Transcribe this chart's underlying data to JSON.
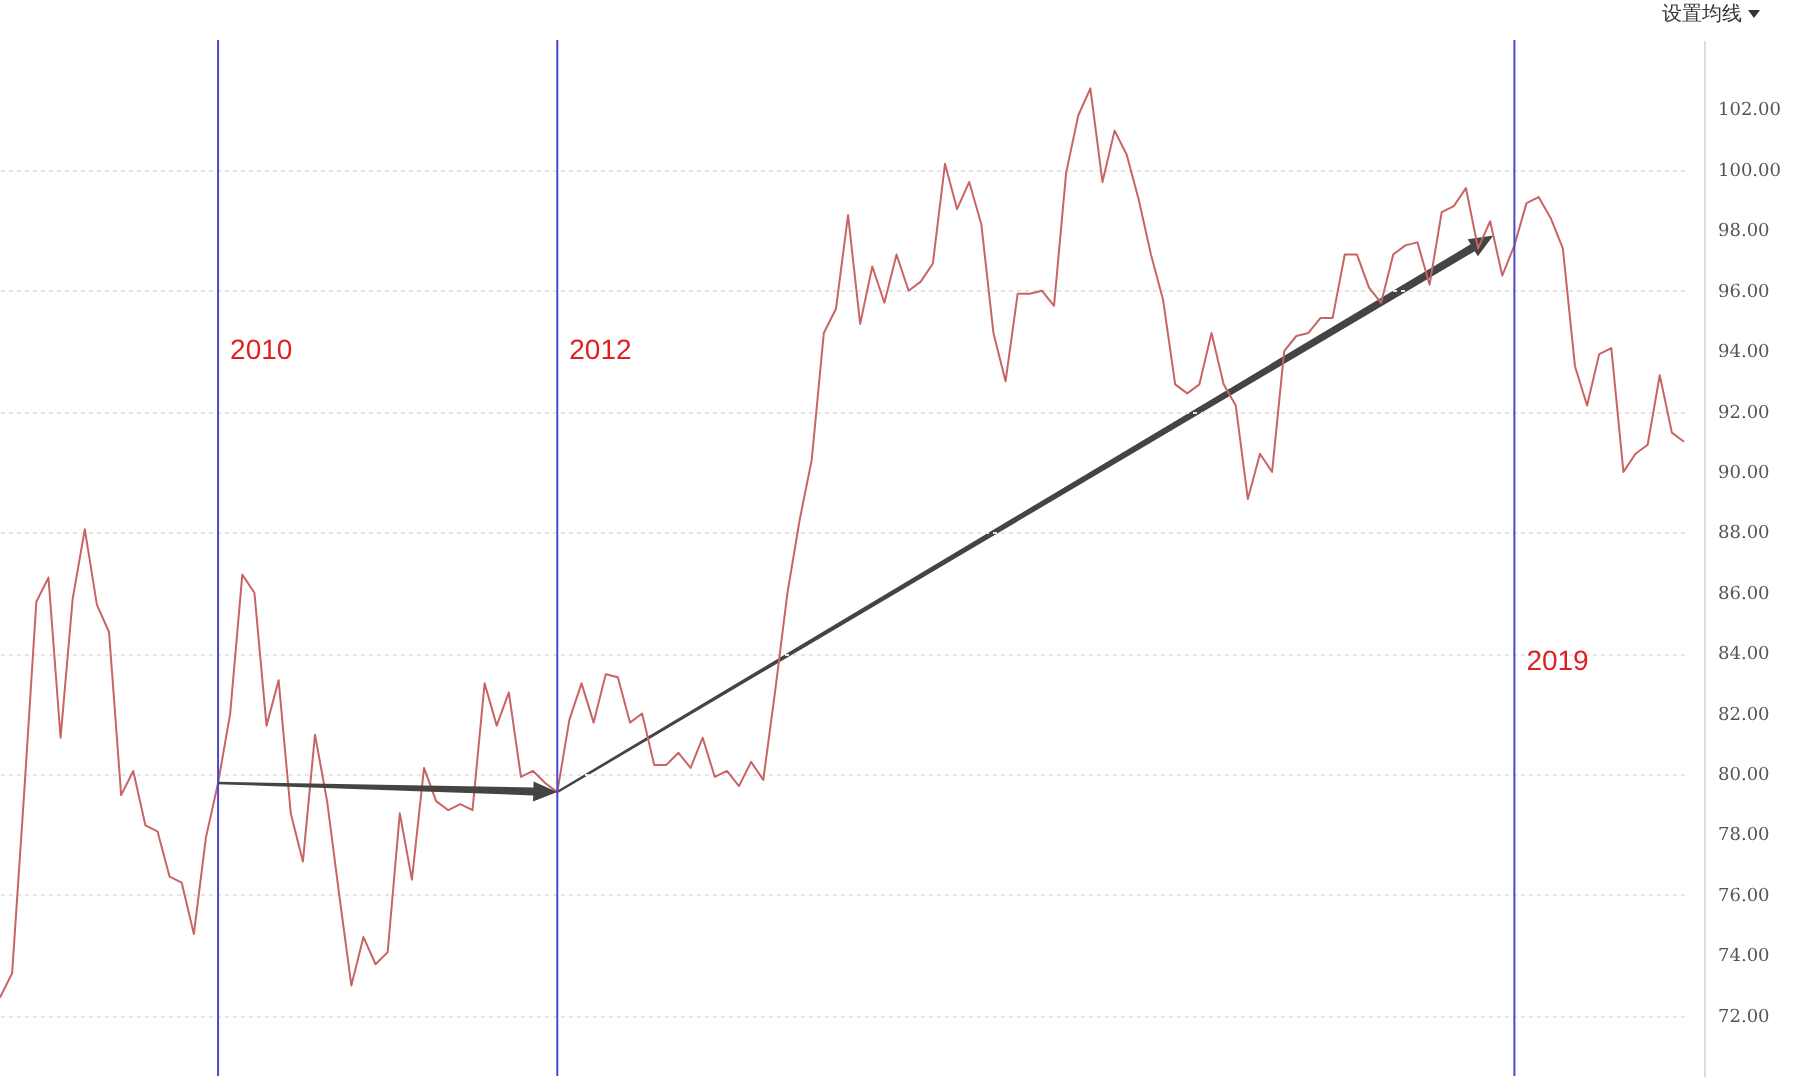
{
  "chart_data": {
    "type": "line",
    "categories": [
      null,
      null,
      null,
      null,
      null,
      null,
      null,
      null,
      null,
      null,
      null,
      null,
      null,
      null,
      null,
      null,
      null,
      null,
      null,
      null,
      null,
      null,
      null,
      null,
      null,
      null,
      null,
      null,
      null,
      null,
      null,
      null,
      null,
      null,
      null,
      null,
      null,
      null,
      null,
      null,
      null,
      null,
      null,
      null,
      null,
      null,
      null,
      null,
      null,
      null,
      null,
      null,
      null,
      null,
      null,
      null,
      null,
      null,
      null,
      null,
      null,
      null,
      null,
      null,
      null,
      null,
      null,
      null,
      null,
      null,
      null,
      null,
      null,
      null,
      null,
      null,
      null,
      null,
      null,
      null,
      null,
      null,
      null,
      null,
      null,
      null,
      null,
      null,
      null,
      null,
      null,
      null,
      null,
      null,
      null,
      null,
      null,
      null,
      null,
      null,
      null,
      null,
      null,
      null,
      null,
      null,
      null,
      null,
      null,
      null,
      null,
      null,
      null,
      null,
      null,
      null,
      null,
      null,
      null,
      null,
      null,
      null,
      null,
      null,
      null,
      null,
      null,
      null,
      null,
      null,
      null,
      null,
      null,
      null,
      null,
      null,
      null,
      null,
      null,
      null
    ],
    "series": [
      {
        "color": "#c86464",
        "values": [
          72.6,
          73.4,
          79.4,
          85.7,
          86.5,
          81.2,
          85.8,
          88.1,
          85.6,
          84.7,
          79.3,
          80.1,
          78.3,
          78.1,
          76.6,
          76.4,
          74.7,
          77.9,
          79.7,
          82.0,
          86.6,
          86.0,
          81.6,
          83.1,
          78.7,
          77.1,
          81.3,
          79.1,
          76.0,
          73.0,
          74.6,
          73.7,
          74.1,
          78.7,
          76.5,
          80.2,
          79.1,
          78.8,
          79.0,
          78.8,
          83.0,
          81.6,
          82.7,
          79.9,
          80.1,
          79.7,
          79.4,
          81.8,
          83.0,
          81.7,
          83.3,
          83.2,
          81.7,
          82.0,
          80.3,
          80.3,
          80.7,
          80.2,
          81.2,
          79.9,
          80.1,
          79.6,
          80.4,
          79.8,
          82.8,
          86.0,
          88.4,
          90.4,
          94.6,
          95.4,
          98.5,
          94.9,
          96.8,
          95.6,
          97.2,
          96.0,
          96.3,
          96.9,
          100.2,
          98.7,
          99.6,
          98.2,
          94.6,
          93.0,
          95.9,
          95.9,
          96.0,
          95.5,
          99.9,
          101.8,
          102.7,
          99.6,
          101.3,
          100.5,
          99.0,
          97.2,
          95.7,
          92.9,
          92.6,
          92.9,
          94.6,
          92.9,
          92.2,
          89.1,
          90.6,
          90.0,
          94.0,
          94.5,
          94.6,
          95.1,
          95.1,
          97.2,
          97.2,
          96.1,
          95.6,
          97.2,
          97.5,
          97.6,
          96.2,
          98.6,
          98.8,
          99.4,
          97.4,
          98.3,
          96.5,
          97.5,
          98.9,
          99.1,
          98.4,
          97.4,
          93.5,
          92.2,
          93.9,
          94.1,
          90.0,
          90.6,
          90.9,
          93.2,
          91.3,
          91.0
        ]
      }
    ],
    "ylim": [
      70,
      104.3
    ],
    "yticks": [
      {
        "value": 72,
        "label": "72.00"
      },
      {
        "value": 74,
        "label": "74.00"
      },
      {
        "value": 76,
        "label": "76.00"
      },
      {
        "value": 78,
        "label": "78.00"
      },
      {
        "value": 80,
        "label": "80.00"
      },
      {
        "value": 82,
        "label": "82.00"
      },
      {
        "value": 84,
        "label": "84.00"
      },
      {
        "value": 86,
        "label": "86.00"
      },
      {
        "value": 88,
        "label": "88.00"
      },
      {
        "value": 90,
        "label": "90.00"
      },
      {
        "value": 92,
        "label": "92.00"
      },
      {
        "value": 94,
        "label": "94.00"
      },
      {
        "value": 96,
        "label": "96.00"
      },
      {
        "value": 98,
        "label": "98.00"
      },
      {
        "value": 100,
        "label": "100.00"
      },
      {
        "value": 102,
        "label": "102.00"
      }
    ],
    "tick_labels": "y",
    "grid": "y",
    "marker": "none",
    "annotations": [
      "设置均线",
      "2010",
      "2012",
      "2019"
    ]
  }
}
